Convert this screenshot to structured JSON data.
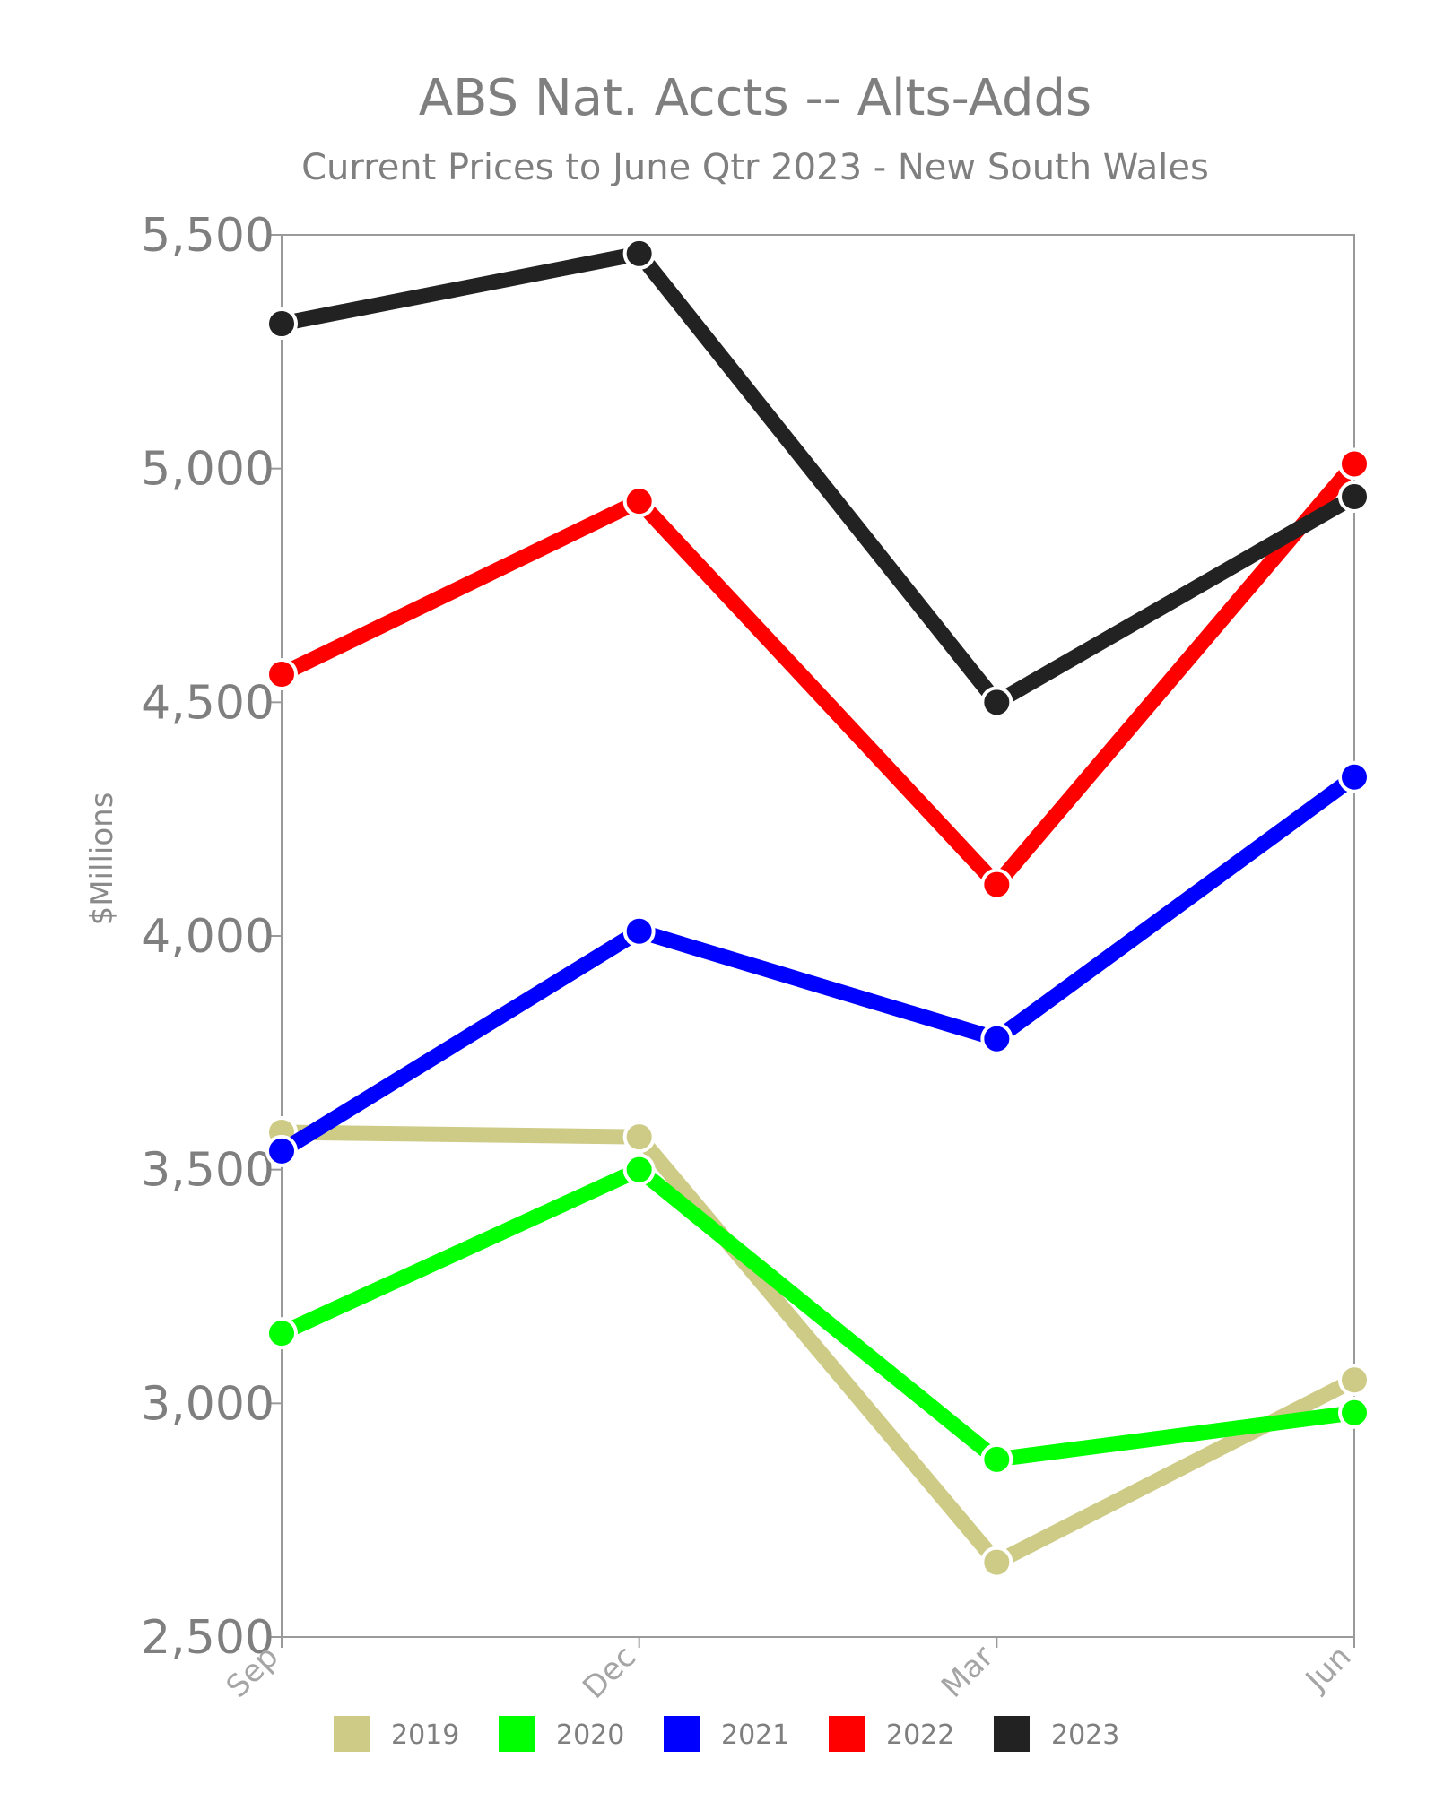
{
  "chart_data": {
    "type": "line",
    "title": "ABS Nat. Accts -- Alts-Adds",
    "subtitle": "Current Prices to June Qtr 2023 - New South Wales",
    "xlabel": "",
    "ylabel": "$Millions",
    "categories": [
      "Sep",
      "Dec",
      "Mar",
      "Jun"
    ],
    "ylim": [
      2500,
      5500
    ],
    "yticks": [
      2500,
      3000,
      3500,
      4000,
      4500,
      5000,
      5500
    ],
    "ytick_labels": [
      "2,500",
      "3,000",
      "3,500",
      "4,000",
      "4,500",
      "5,000",
      "5,500"
    ],
    "grid": false,
    "legend_position": "bottom",
    "series": [
      {
        "name": "2019",
        "color": "#cdcb85",
        "values": [
          3580,
          3570,
          2660,
          3050
        ]
      },
      {
        "name": "2020",
        "color": "#00ff00",
        "values": [
          3150,
          3500,
          2880,
          2980
        ]
      },
      {
        "name": "2021",
        "color": "#0000ff",
        "values": [
          3540,
          4010,
          3780,
          4340
        ]
      },
      {
        "name": "2022",
        "color": "#ff0000",
        "values": [
          4560,
          4930,
          4110,
          5010
        ]
      },
      {
        "name": "2023",
        "color": "#222222",
        "values": [
          5310,
          5460,
          4500,
          4940
        ]
      }
    ]
  }
}
